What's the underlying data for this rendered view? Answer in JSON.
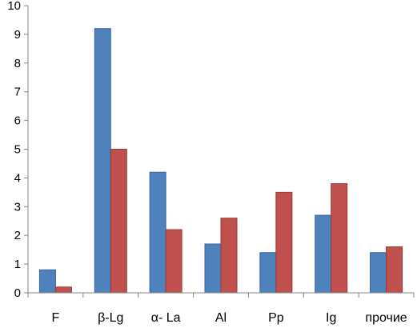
{
  "chart_data": {
    "type": "bar",
    "title": "",
    "xlabel": "",
    "ylabel": "",
    "ylim": [
      0,
      10
    ],
    "yticks": [
      0,
      1,
      2,
      3,
      4,
      5,
      6,
      7,
      8,
      9,
      10
    ],
    "grid": false,
    "legend": "none",
    "categories": [
      "F",
      "β-Lg",
      "α- La",
      "Al",
      "Pp",
      "Ig",
      "прочие"
    ],
    "series": [
      {
        "values": [
          0.8,
          9.2,
          4.2,
          1.7,
          1.4,
          2.7,
          1.4
        ],
        "color": "#4F81BD",
        "edge": "#3A6597"
      },
      {
        "values": [
          0.2,
          5.0,
          2.2,
          2.6,
          3.5,
          3.8,
          1.6
        ],
        "color": "#C0504D",
        "edge": "#963C39"
      }
    ]
  }
}
